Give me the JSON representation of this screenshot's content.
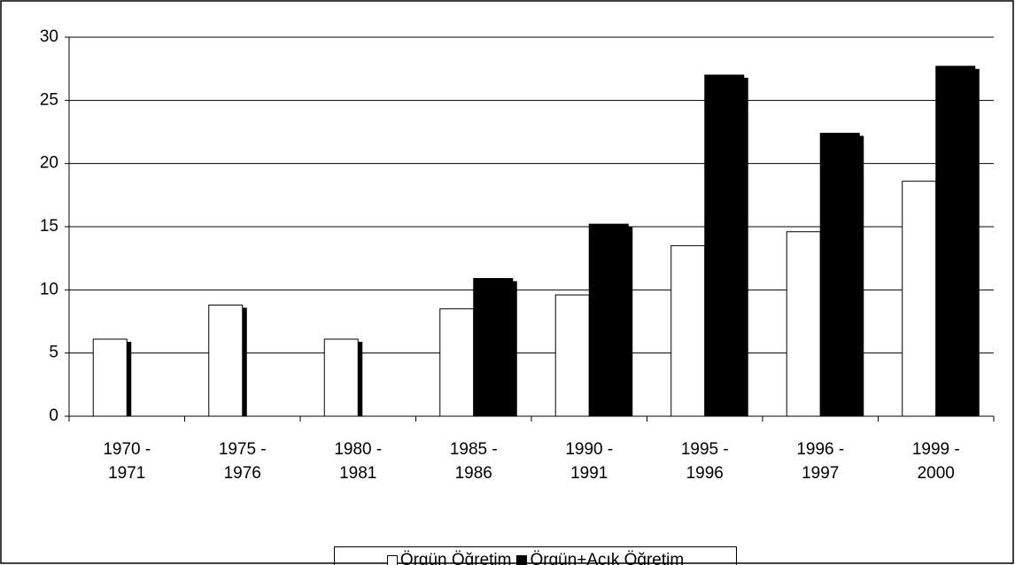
{
  "chart_data": {
    "type": "bar",
    "categories": [
      "1970 - 1971",
      "1975 - 1976",
      "1980 - 1981",
      "1985 - 1986",
      "1990 - 1991",
      "1995 - 1996",
      "1996 - 1997",
      "1999 - 2000"
    ],
    "series": [
      {
        "name": "Örgün Öğretim",
        "color": "#ffffff",
        "values": [
          6.1,
          8.8,
          6.1,
          8.5,
          9.6,
          13.5,
          14.6,
          18.6
        ]
      },
      {
        "name": "Örgün+Açık Öğretim",
        "color": "#000000",
        "values": [
          null,
          null,
          null,
          10.9,
          15.2,
          27.0,
          22.4,
          27.7
        ]
      }
    ],
    "ylim": [
      0,
      30
    ],
    "yticks": [
      0,
      5,
      10,
      15,
      20,
      25,
      30
    ],
    "grid": true,
    "legend": "bottom"
  }
}
